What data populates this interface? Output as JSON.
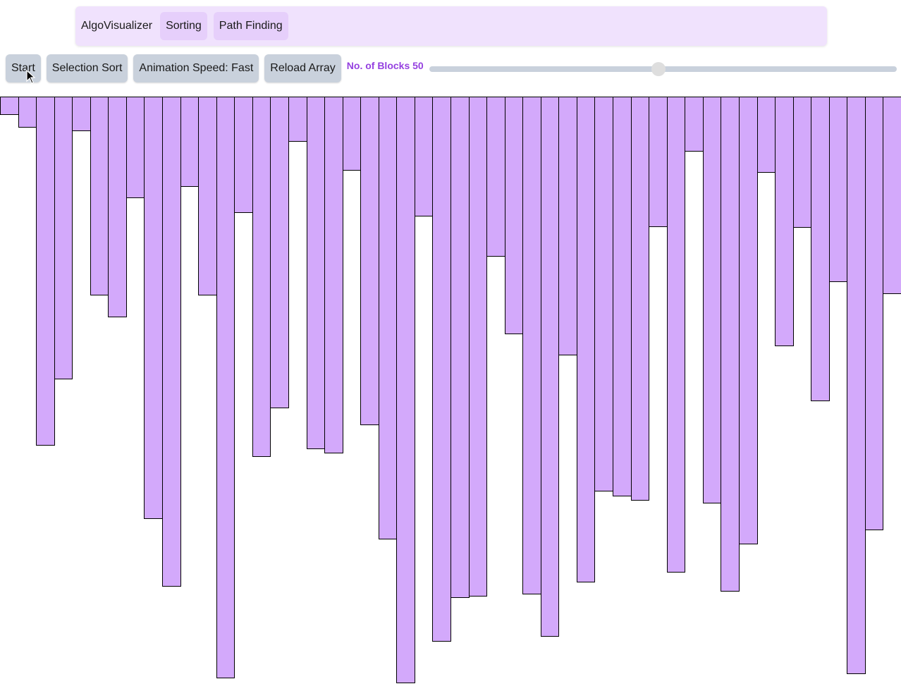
{
  "navbar": {
    "brand": "AlgoVisualizer",
    "items": [
      {
        "label": "Sorting"
      },
      {
        "label": "Path Finding"
      }
    ]
  },
  "controls": {
    "start_label": "Start",
    "algorithm_label": "Selection Sort",
    "speed_label": "Animation Speed: Fast",
    "reload_label": "Reload Array",
    "blocks_label": "No. of Blocks 50",
    "blocks_value": 50,
    "blocks_slider_fraction": 0.49
  },
  "colors": {
    "bar_fill": "#d3a9fb",
    "bar_border": "#000000",
    "navbar_bg": "#f0e2fd",
    "nav_button_bg": "#e6cffb",
    "control_button_bg": "#c9d1dc",
    "accent_text": "#9541e0"
  },
  "chart_data": {
    "type": "bar",
    "orientation": "hanging-down",
    "values": [
      26,
      44,
      495,
      401,
      49,
      282,
      313,
      144,
      599,
      695,
      128,
      282,
      825,
      165,
      511,
      442,
      64,
      500,
      506,
      105,
      466,
      628,
      832,
      170,
      773,
      711,
      709,
      227,
      337,
      706,
      766,
      367,
      689,
      560,
      567,
      573,
      185,
      675,
      78,
      577,
      702,
      635,
      108,
      354,
      186,
      432,
      263,
      819,
      615,
      280
    ],
    "ylim": [
      0,
      843
    ]
  },
  "icons": {
    "cursor": "arrow-cursor-icon"
  }
}
